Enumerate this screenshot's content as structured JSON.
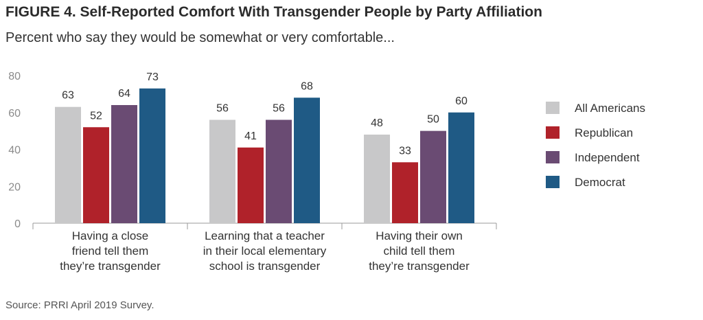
{
  "title": "FIGURE 4.  Self-Reported Comfort With Transgender People by Party Affiliation",
  "subtitle": "Percent who say they would be somewhat or very comfortable...",
  "source": "Source: PRRI April 2019 Survey.",
  "chart_data": {
    "type": "bar",
    "categories": [
      [
        "Having a close",
        "friend tell them",
        "they’re transgender"
      ],
      [
        "Learning that a teacher",
        "in their local elementary",
        "school is transgender"
      ],
      [
        "Having their own",
        "child tell them",
        "they’re transgender"
      ]
    ],
    "series": [
      {
        "name": "All Americans",
        "color": "#c8c8c9",
        "values": [
          63,
          56,
          48
        ]
      },
      {
        "name": "Republican",
        "color": "#b0222a",
        "values": [
          52,
          41,
          33
        ]
      },
      {
        "name": "Independent",
        "color": "#6a4b73",
        "values": [
          64,
          56,
          50
        ]
      },
      {
        "name": "Democrat",
        "color": "#1f5a85",
        "values": [
          73,
          68,
          60
        ]
      }
    ],
    "ylim": [
      0,
      80
    ],
    "yticks": [
      0,
      20,
      40,
      60,
      80
    ],
    "grid": false,
    "legend": "right"
  }
}
